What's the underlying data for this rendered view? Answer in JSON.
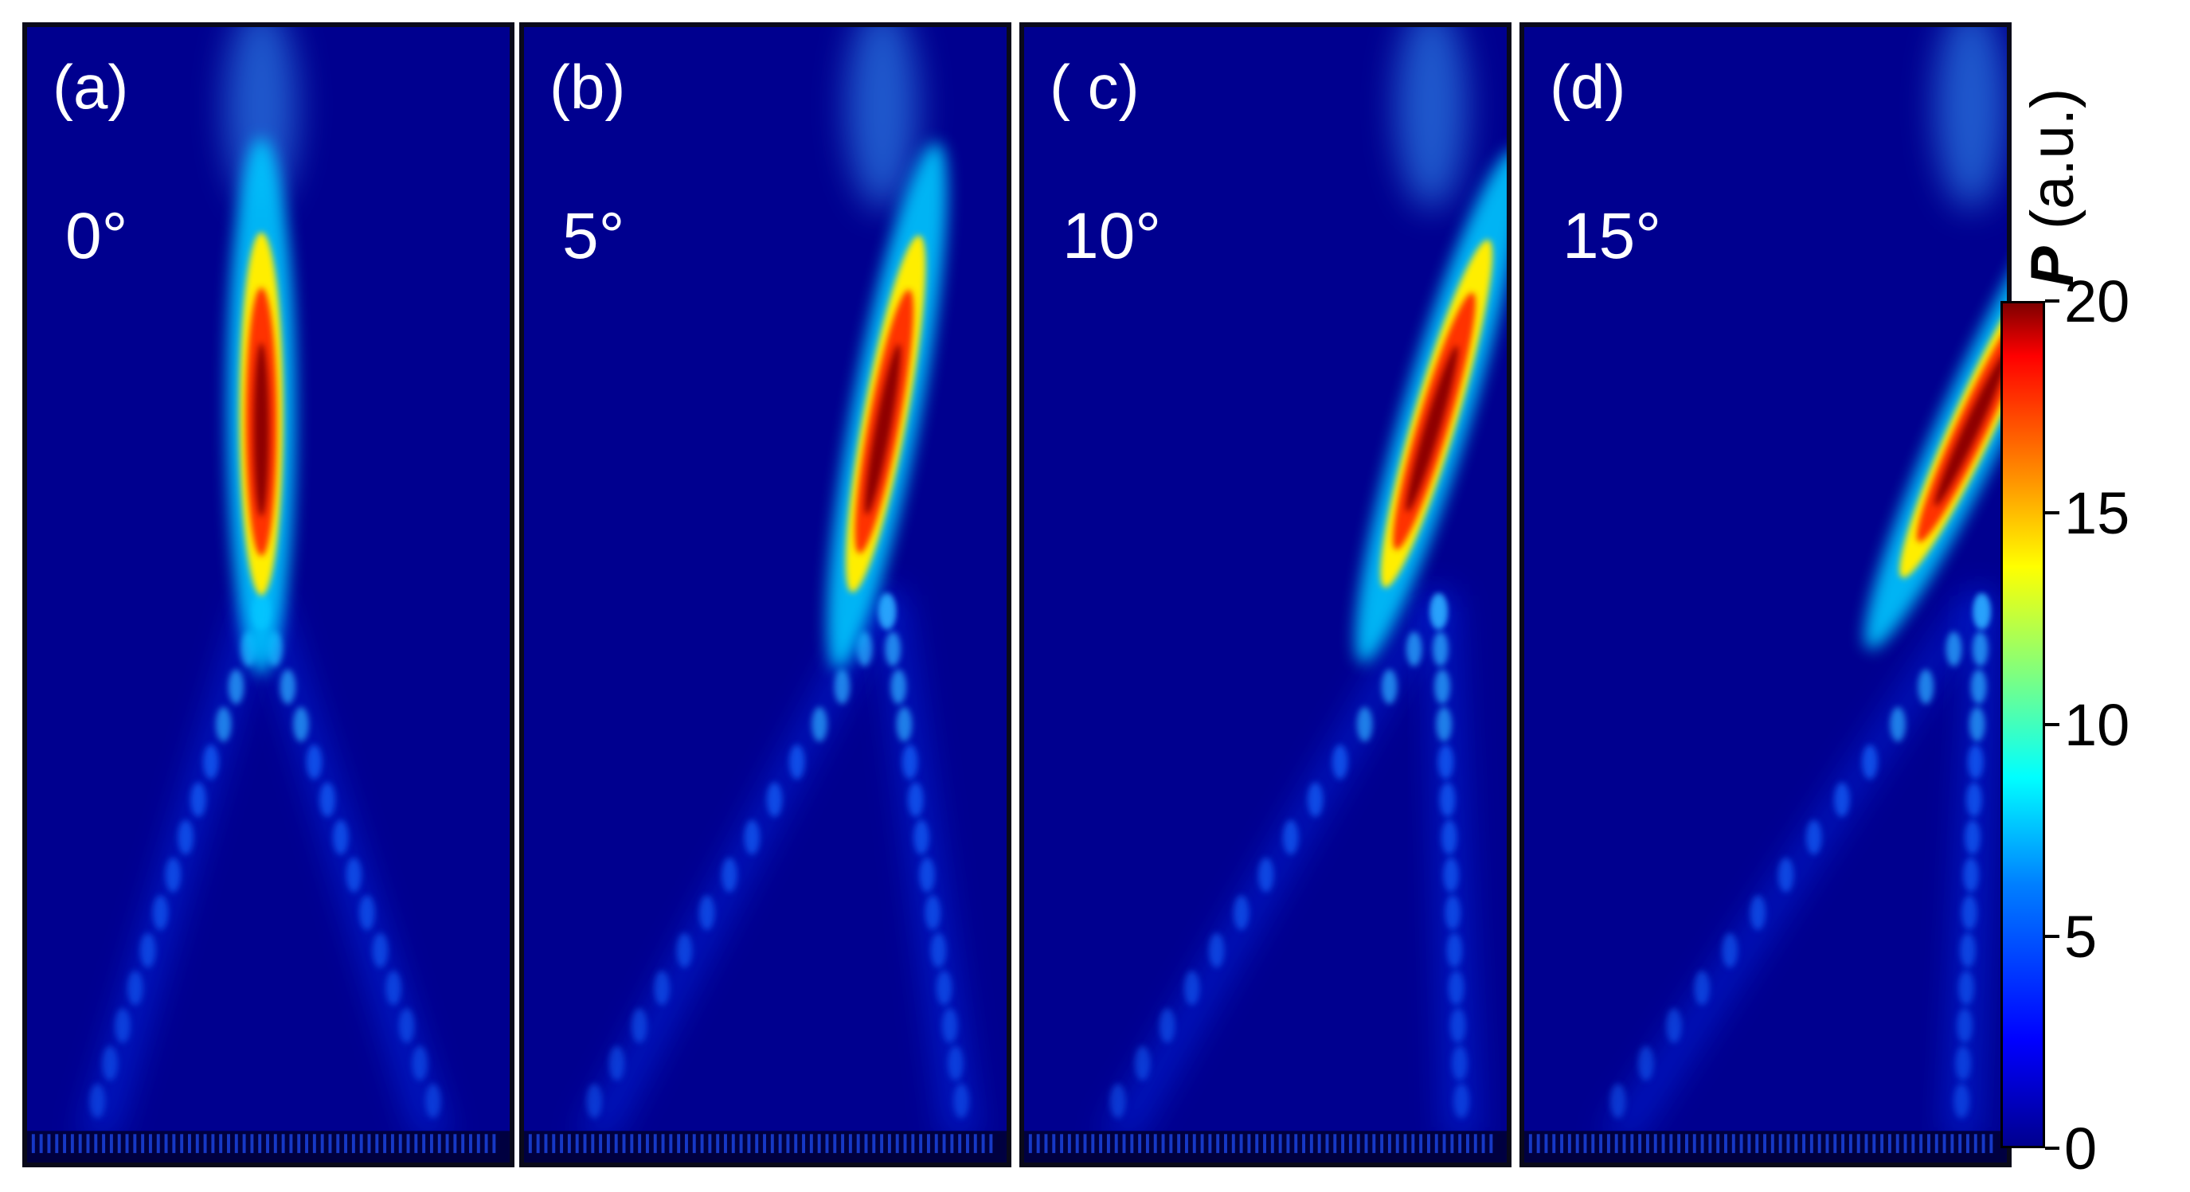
{
  "chart_data": {
    "type": "heatmap",
    "panels": [
      {
        "label": "(a)",
        "angle": "0°",
        "angle_deg": 0,
        "peak": 20
      },
      {
        "label": "(b)",
        "angle": "5°",
        "angle_deg": 5,
        "peak": 20
      },
      {
        "label": "( c)",
        "angle": "10°",
        "angle_deg": 10,
        "peak": 20
      },
      {
        "label": "(d)",
        "angle": "15°",
        "angle_deg": 15,
        "peak": 20
      }
    ],
    "colorbar": {
      "label_symbol": "P",
      "label_unit": "(a.u.)",
      "range": [
        0,
        20
      ],
      "ticks": [
        "0",
        "5",
        "10",
        "15",
        "20"
      ],
      "tick_values": [
        0,
        5,
        10,
        15,
        20
      ],
      "colormap": "jet"
    }
  }
}
